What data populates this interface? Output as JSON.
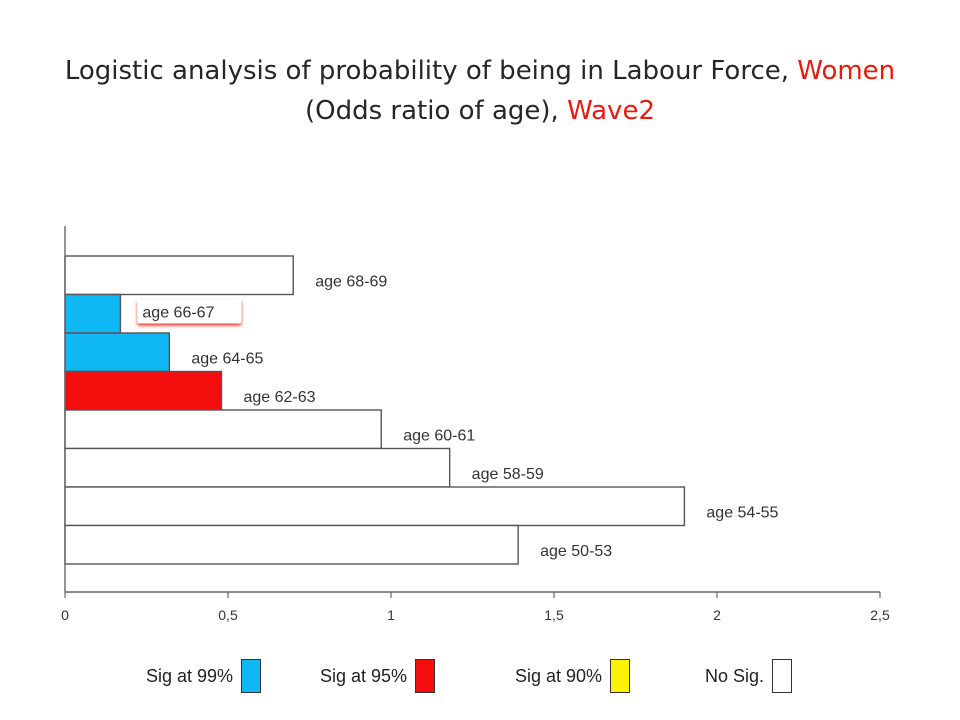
{
  "title": {
    "part1": "Logistic analysis of probability of being in Labour Force, ",
    "part1_highlight": "Women",
    "part2": "(Odds ratio of age), ",
    "part2_highlight": "Wave2"
  },
  "colors": {
    "sig99": "#0fb7f3",
    "sig95": "#f50e0e",
    "sig90": "#fff200",
    "nosig": "#ffffff",
    "highlight_text": "#e8190f"
  },
  "legend": [
    {
      "label": "Sig at 99%",
      "key": "sig99",
      "color": "#0fb7f3"
    },
    {
      "label": "Sig at 95%",
      "key": "sig95",
      "color": "#f50e0e"
    },
    {
      "label": "Sig at 90%",
      "key": "sig90",
      "color": "#fff200"
    },
    {
      "label": "No Sig.",
      "key": "nosig",
      "color": "#ffffff"
    }
  ],
  "chart_data": {
    "type": "bar",
    "orientation": "horizontal",
    "title": "Logistic analysis of probability of being in Labour Force, Women (Odds ratio of age), Wave2",
    "xlabel": "",
    "ylabel": "",
    "xlim": [
      0,
      2.5
    ],
    "xticks": [
      0,
      0.5,
      1,
      1.5,
      2,
      2.5
    ],
    "xtick_labels": [
      "0",
      "0,5",
      "1",
      "1,5",
      "2",
      "2,5"
    ],
    "grid": false,
    "legend_position": "bottom",
    "categories": [
      "age 68-69",
      "age 66-67",
      "age 64-65",
      "age 62-63",
      "age 60-61",
      "age 58-59",
      "age 54-55",
      "age 50-53"
    ],
    "values": [
      0.7,
      0.17,
      0.32,
      0.48,
      0.97,
      1.18,
      1.9,
      1.39
    ],
    "significance": [
      "nosig",
      "sig99",
      "sig99",
      "sig95",
      "nosig",
      "nosig",
      "nosig",
      "nosig"
    ],
    "highlighted_label": "age 66-67"
  }
}
